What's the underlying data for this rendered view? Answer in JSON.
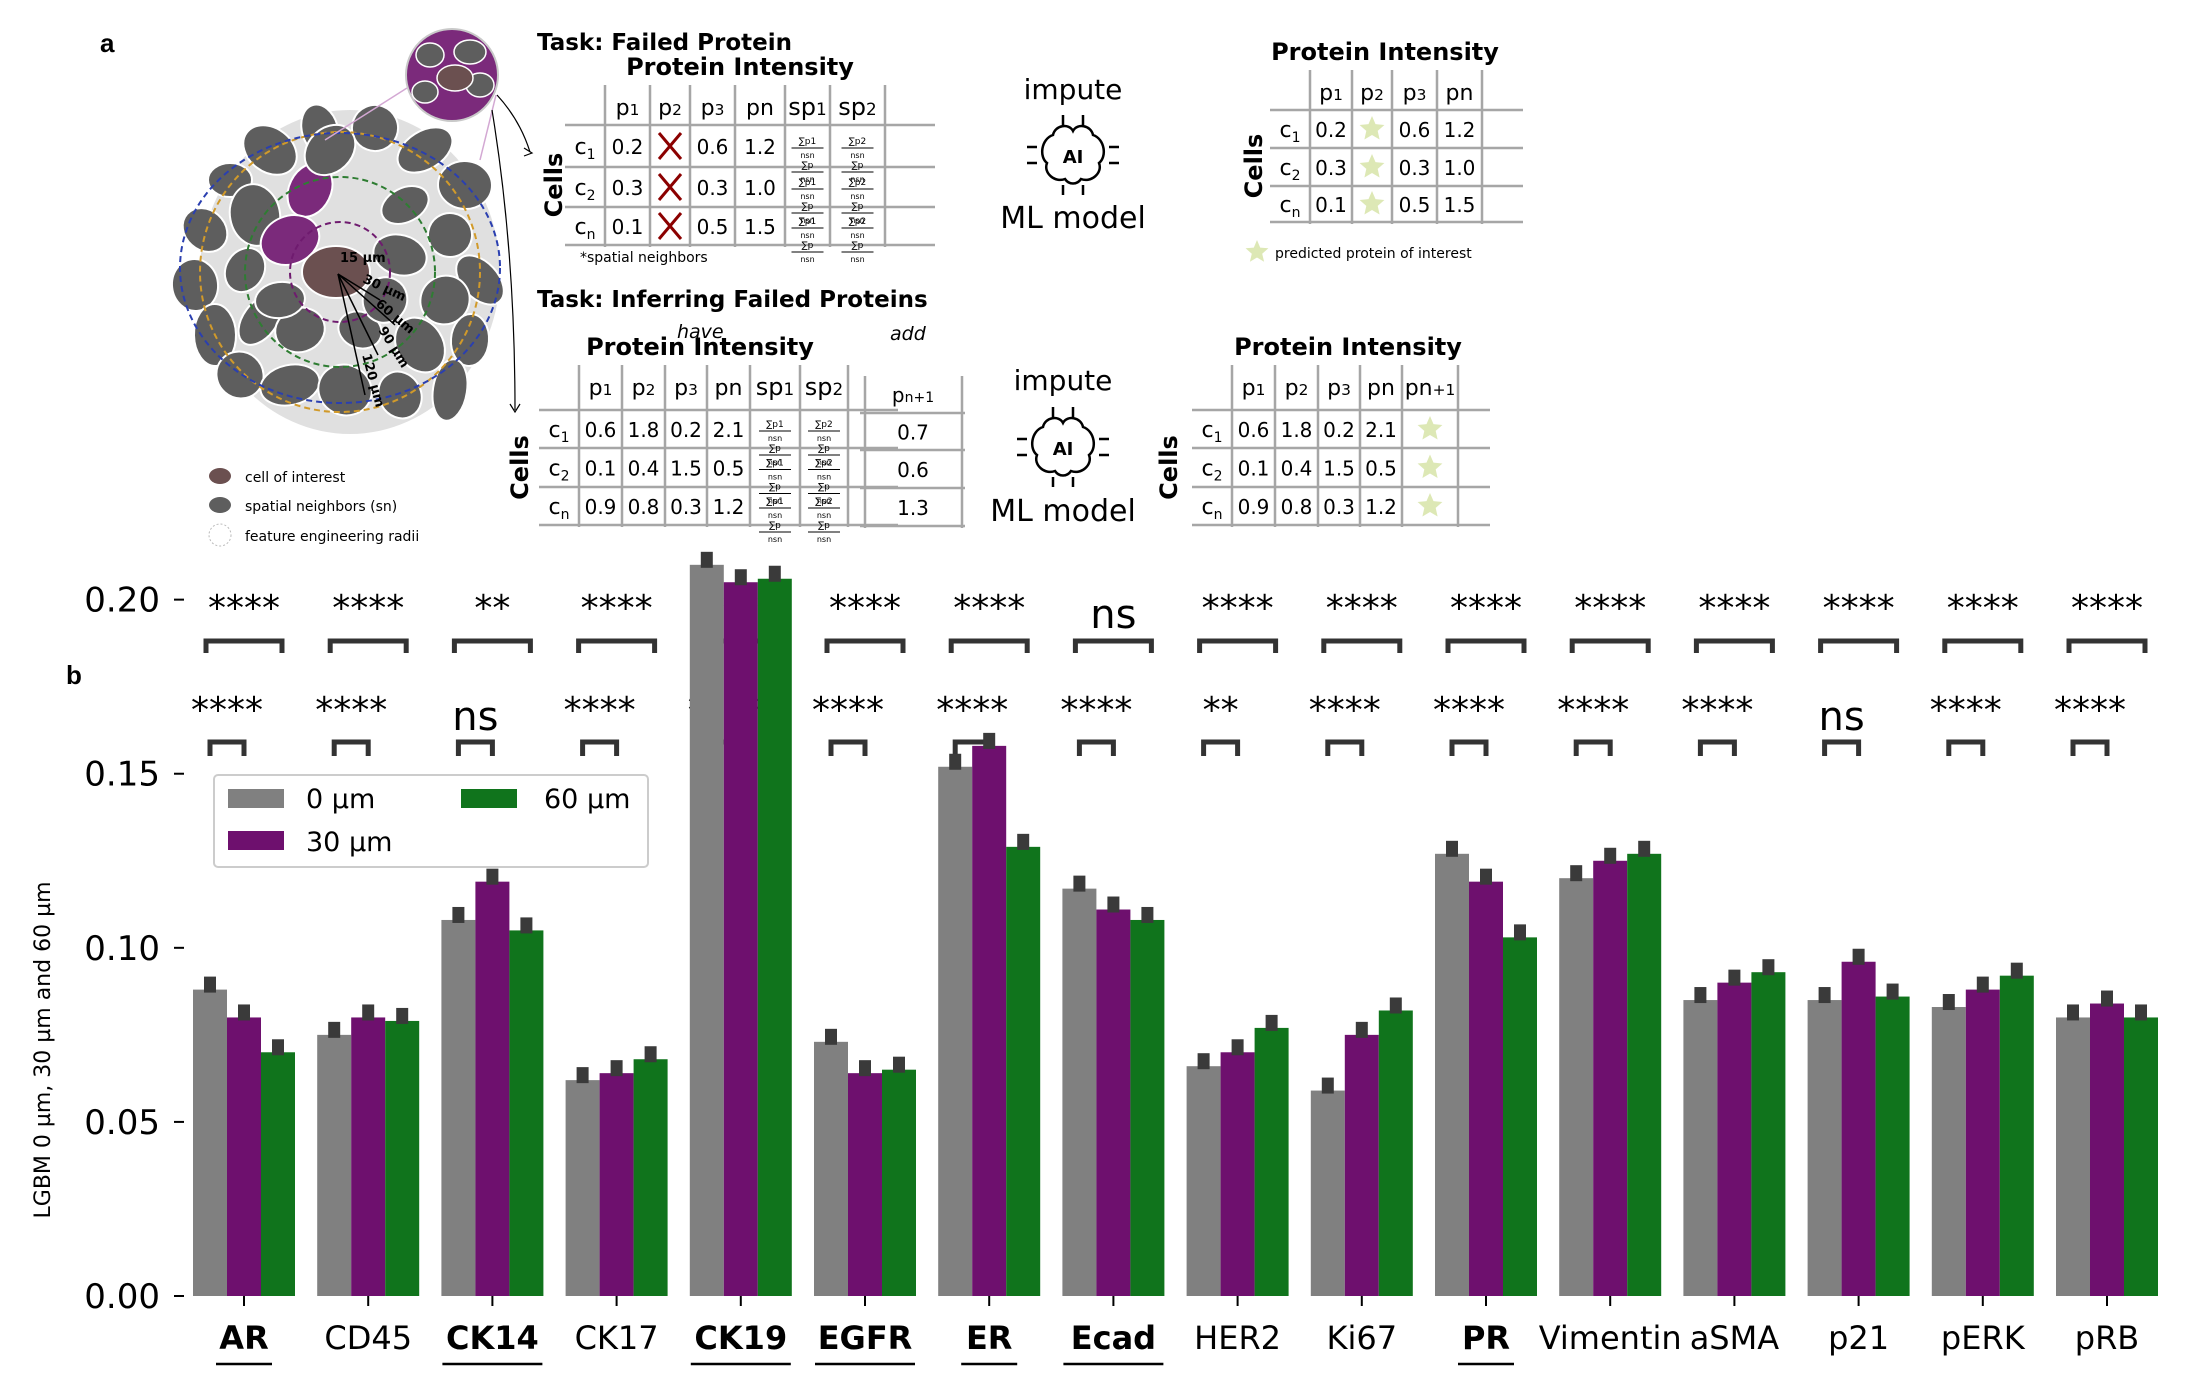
{
  "panel_a": {
    "label": "a",
    "task1_title": "Task: Failed Protein",
    "task2_title": "Task: Inferring Failed Proteins",
    "table_title": "Protein Intensity",
    "rows_label": "Cells",
    "row_names": [
      "c1",
      "c2",
      "cn"
    ],
    "impute": "impute",
    "ai": "AI",
    "ml_model": "ML model",
    "have": "have",
    "add": "add",
    "spatial_note": "*spatial neighbors",
    "predicted_note": "predicted protein of interest",
    "radii": [
      "15 µm",
      "30 µm",
      "60 µm",
      "90 µm",
      "120 µm"
    ],
    "legend": [
      "cell of interest",
      "spatial neighbors (sn)",
      "feature engineering radii"
    ],
    "table1": {
      "columns": [
        "p1",
        "p2",
        "p3",
        "pn",
        "sp1",
        "sp2"
      ],
      "rows": [
        [
          "0.2",
          "",
          "0.6",
          "1.2"
        ],
        [
          "0.3",
          "",
          "0.3",
          "1.0"
        ],
        [
          "0.1",
          "",
          "0.5",
          "1.5"
        ]
      ]
    },
    "table1_out": {
      "columns": [
        "p1",
        "p2",
        "p3",
        "pn"
      ],
      "rows": [
        [
          "0.2",
          "",
          "0.6",
          "1.2"
        ],
        [
          "0.3",
          "",
          "0.3",
          "1.0"
        ],
        [
          "0.1",
          "",
          "0.5",
          "1.5"
        ]
      ]
    },
    "table2": {
      "columns": [
        "p1",
        "p2",
        "p3",
        "pn",
        "sp1",
        "sp2"
      ],
      "rows": [
        [
          "0.6",
          "1.8",
          "0.2",
          "2.1"
        ],
        [
          "0.1",
          "0.4",
          "1.5",
          "0.5"
        ],
        [
          "0.9",
          "0.8",
          "0.3",
          "1.2"
        ]
      ]
    },
    "table2_add": {
      "column": "pn+1",
      "values": [
        "0.7",
        "0.6",
        "1.3"
      ]
    },
    "table2_out": {
      "columns": [
        "p1",
        "p2",
        "p3",
        "pn",
        "pn+1"
      ],
      "rows": [
        [
          "0.6",
          "1.8",
          "0.2",
          "2.1"
        ],
        [
          "0.1",
          "0.4",
          "1.5",
          "0.5"
        ],
        [
          "0.9",
          "0.8",
          "0.3",
          "1.2"
        ]
      ]
    }
  },
  "panel_b": {
    "label": "b"
  },
  "colors": {
    "zero": "#808080",
    "thirty": "#6e106e",
    "sixty": "#10741c",
    "errbar": "#3a3a3a",
    "grid": "#a6a6a6",
    "ai_star": "#dde8b5",
    "fail_x": "#8b0000"
  },
  "chart_data": {
    "type": "bar",
    "ylabel": "LGBM 0 µm, 30 µm and 60 µm",
    "xlabel": "",
    "ylim": [
      0,
      0.22
    ],
    "yticks": [
      "0.00",
      "0.05",
      "0.10",
      "0.15",
      "0.20"
    ],
    "categories": [
      "AR",
      "CD45",
      "CK14",
      "CK17",
      "CK19",
      "EGFR",
      "ER",
      "Ecad",
      "HER2",
      "Ki67",
      "PR",
      "Vimentin",
      "aSMA",
      "p21",
      "pERK",
      "pRB"
    ],
    "bold_underlined": [
      "AR",
      "CK14",
      "CK19",
      "EGFR",
      "ER",
      "Ecad",
      "PR"
    ],
    "legend_position": "top-left",
    "series": [
      {
        "name": "0 µm",
        "values": [
          0.088,
          0.075,
          0.108,
          0.062,
          0.21,
          0.073,
          0.152,
          0.117,
          0.066,
          0.059,
          0.127,
          0.12,
          0.085,
          0.085,
          0.083,
          0.08
        ]
      },
      {
        "name": "30 µm",
        "values": [
          0.08,
          0.08,
          0.119,
          0.064,
          0.205,
          0.064,
          0.158,
          0.111,
          0.07,
          0.075,
          0.119,
          0.125,
          0.09,
          0.096,
          0.088,
          0.084
        ]
      },
      {
        "name": "60 µm",
        "values": [
          0.07,
          0.079,
          0.105,
          0.068,
          0.206,
          0.065,
          0.129,
          0.108,
          0.077,
          0.082,
          0.103,
          0.127,
          0.093,
          0.086,
          0.092,
          0.08
        ]
      }
    ],
    "significance_0_vs_60": [
      "****",
      "****",
      "**",
      "****",
      "****",
      "****",
      "****",
      "ns",
      "****",
      "****",
      "****",
      "****",
      "****",
      "****",
      "****",
      "****"
    ],
    "significance_0_vs_30": [
      "****",
      "****",
      "ns",
      "****",
      "****",
      "****",
      "****",
      "****",
      "**",
      "****",
      "****",
      "****",
      "****",
      "ns",
      "****",
      "****"
    ]
  }
}
